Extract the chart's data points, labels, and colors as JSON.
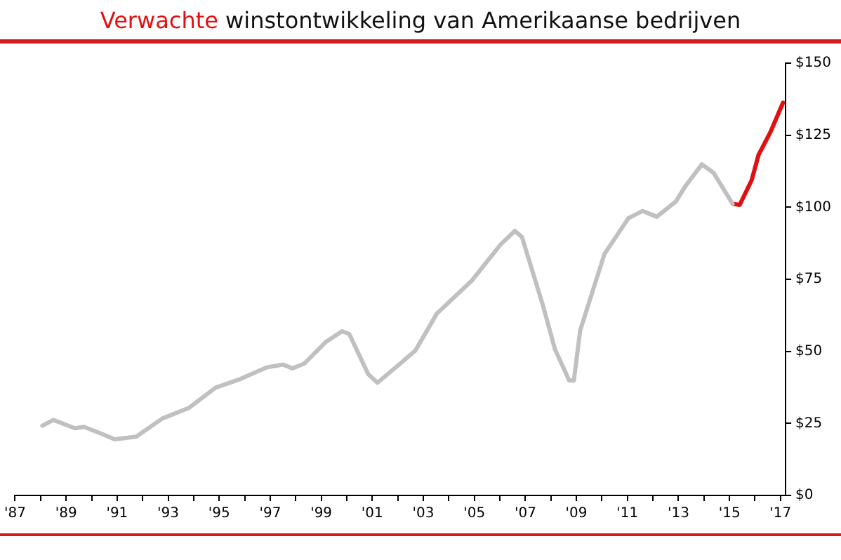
{
  "chart_data": {
    "type": "line",
    "title": "Verwachte winstontwikkeling van Amerikaanse bedrijven",
    "series": [
      {
        "color": "#c0c0c0",
        "x": [
          1988.07,
          1988.5,
          1989.34,
          1989.7,
          1990.45,
          1990.9,
          1991.75,
          1992.77,
          1993.8,
          1994.86,
          1995.83,
          1996.85,
          1997.5,
          1997.87,
          1998.33,
          1999.17,
          1999.82,
          2000.1,
          2000.84,
          2001.2,
          2002.14,
          2002.69,
          2003.53,
          2004.92,
          2006.03,
          2006.59,
          2006.87,
          2007.7,
          2008.16,
          2008.72,
          2008.9,
          2009.15,
          2010.1,
          2011.04,
          2011.6,
          2012.15,
          2012.9,
          2013.27,
          2013.92,
          2014.38,
          2015.12
        ],
        "values": [
          24.2,
          26.2,
          23.3,
          23.8,
          21.2,
          19.5,
          20.4,
          26.7,
          30.3,
          37.4,
          40.4,
          44.4,
          45.4,
          44.1,
          45.7,
          53.2,
          57,
          56,
          42.1,
          39.1,
          46.1,
          50.3,
          63.1,
          74.7,
          87.1,
          91.8,
          89.6,
          65.6,
          50.7,
          39.9,
          39.9,
          57.3,
          83.8,
          96.2,
          98.7,
          96.7,
          102,
          107.3,
          114.9,
          111.9,
          101.2
        ]
      },
      {
        "color": "#e01010",
        "x": [
          2015.12,
          2015.4,
          2015.87,
          2016.14,
          2016.6,
          2017.1
        ],
        "values": [
          101.2,
          100.8,
          109.4,
          118.2,
          126,
          136.3
        ]
      }
    ],
    "xlim": [
      1987,
      2017.2
    ],
    "xticks": [
      {
        "value": 1987,
        "label": "'87"
      },
      {
        "value": 1988,
        "label": null
      },
      {
        "value": 1989,
        "label": "'89"
      },
      {
        "value": 1990,
        "label": null
      },
      {
        "value": 1991,
        "label": "'91"
      },
      {
        "value": 1992,
        "label": null
      },
      {
        "value": 1993,
        "label": "'93"
      },
      {
        "value": 1994,
        "label": null
      },
      {
        "value": 1995,
        "label": "'95"
      },
      {
        "value": 1996,
        "label": null
      },
      {
        "value": 1997,
        "label": "'97"
      },
      {
        "value": 1998,
        "label": null
      },
      {
        "value": 1999,
        "label": "'99"
      },
      {
        "value": 2000,
        "label": null
      },
      {
        "value": 2001,
        "label": "'01"
      },
      {
        "value": 2002,
        "label": null
      },
      {
        "value": 2003,
        "label": "'03"
      },
      {
        "value": 2004,
        "label": null
      },
      {
        "value": 2005,
        "label": "'05"
      },
      {
        "value": 2006,
        "label": null
      },
      {
        "value": 2007,
        "label": "'07"
      },
      {
        "value": 2008,
        "label": null
      },
      {
        "value": 2009,
        "label": "'09"
      },
      {
        "value": 2010,
        "label": null
      },
      {
        "value": 2011,
        "label": "'11"
      },
      {
        "value": 2012,
        "label": null
      },
      {
        "value": 2013,
        "label": "'13"
      },
      {
        "value": 2014,
        "label": null
      },
      {
        "value": 2015,
        "label": "'15"
      },
      {
        "value": 2016,
        "label": null
      },
      {
        "value": 2017,
        "label": "'17"
      }
    ],
    "ylim": [
      0,
      150
    ],
    "yticks": [
      {
        "value": 0,
        "label": "$0"
      },
      {
        "value": 25,
        "label": "$25"
      },
      {
        "value": 50,
        "label": "$50"
      },
      {
        "value": 75,
        "label": "$75"
      },
      {
        "value": 100,
        "label": "$100"
      },
      {
        "value": 125,
        "label": "$125"
      },
      {
        "value": 150,
        "label": "$150"
      }
    ],
    "grid": false,
    "legend": false,
    "marker": "none",
    "line_style": "solid"
  }
}
